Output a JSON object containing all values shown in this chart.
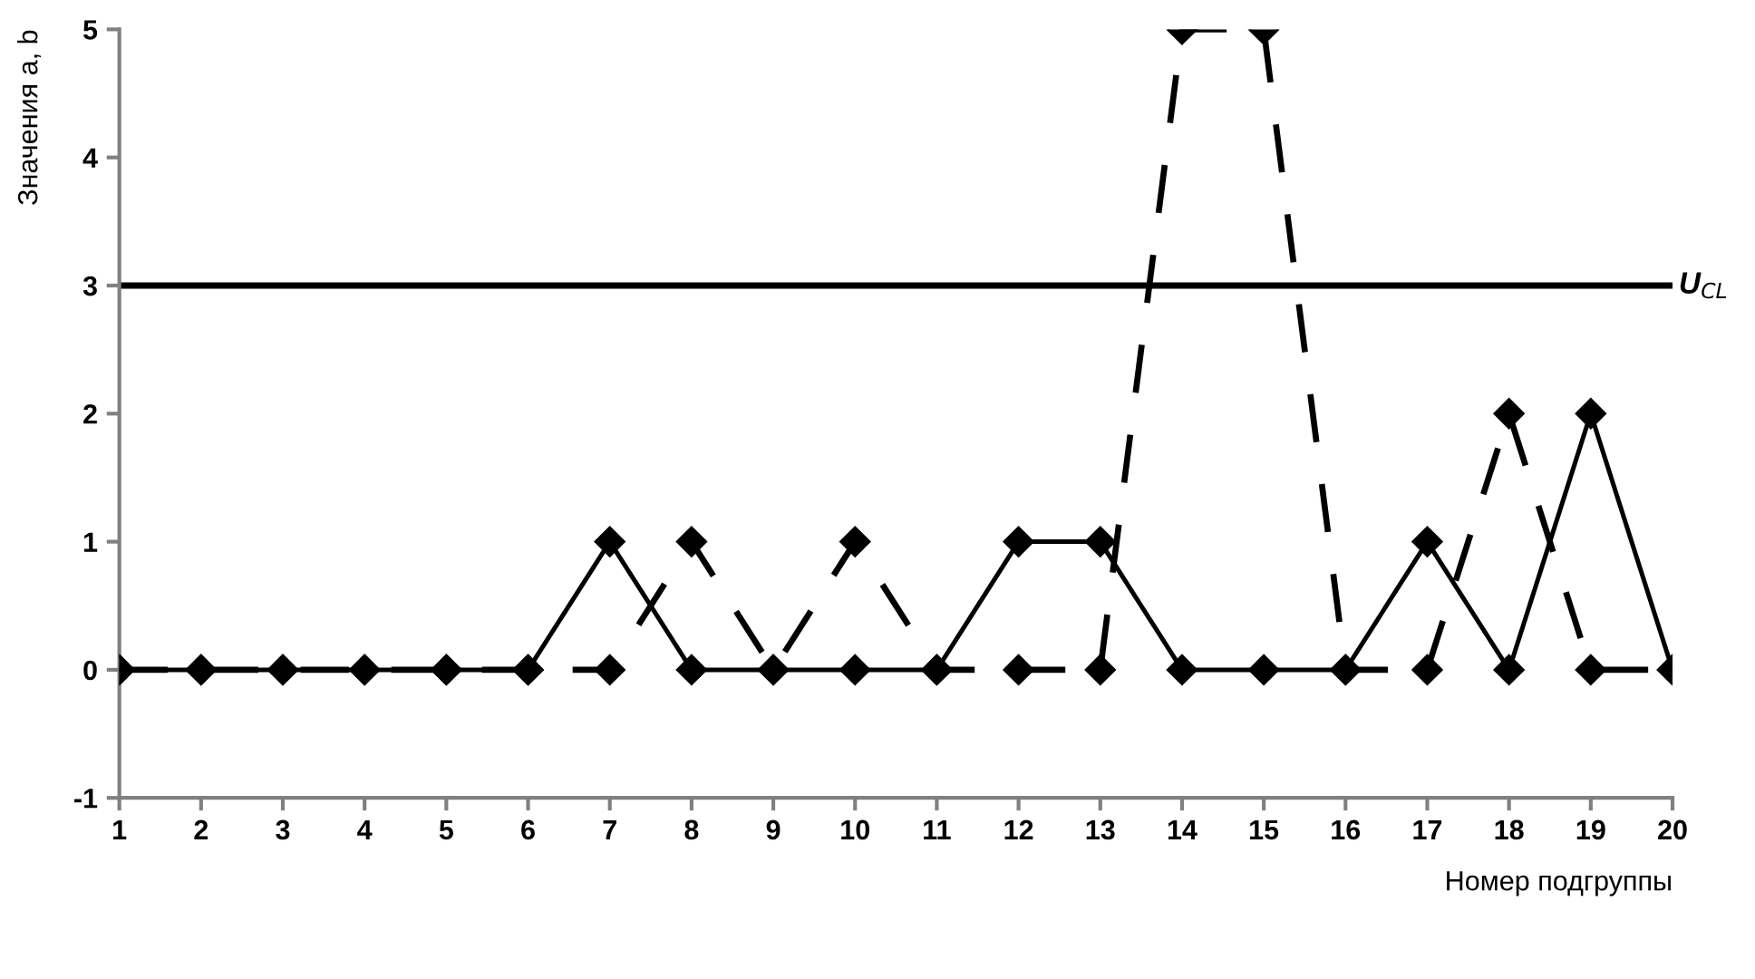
{
  "chart_data": {
    "type": "line",
    "xlabel": "Номер подгруппы",
    "ylabel": "Значения a, b",
    "x": [
      1,
      2,
      3,
      4,
      5,
      6,
      7,
      8,
      9,
      10,
      11,
      12,
      13,
      14,
      15,
      16,
      17,
      18,
      19,
      20
    ],
    "series": [
      {
        "color": "#000000",
        "line_style": "solid",
        "values": [
          0,
          0,
          0,
          0,
          0,
          0,
          1,
          0,
          0,
          0,
          0,
          1,
          1,
          0,
          0,
          0,
          1,
          0,
          2,
          0
        ]
      },
      {
        "color": "#000000",
        "line_style": "dashed",
        "values": [
          0,
          0,
          0,
          0,
          0,
          0,
          0,
          1,
          0,
          1,
          0,
          0,
          0,
          5,
          5,
          0,
          0,
          2,
          0,
          0
        ]
      }
    ],
    "marker": "diamond",
    "xlim": [
      1,
      20
    ],
    "xticks": [
      1,
      2,
      3,
      4,
      5,
      6,
      7,
      8,
      9,
      10,
      11,
      12,
      13,
      14,
      15,
      16,
      17,
      18,
      19,
      20
    ],
    "ylim": [
      -1,
      5
    ],
    "yticks": [
      -1,
      0,
      1,
      2,
      3,
      4,
      5
    ],
    "grid": false,
    "legend": false,
    "ref_lines": [
      {
        "axis": "y",
        "value": 3,
        "label": "U$_{CL}$",
        "color": "#000000",
        "line_style": "solid"
      }
    ]
  }
}
